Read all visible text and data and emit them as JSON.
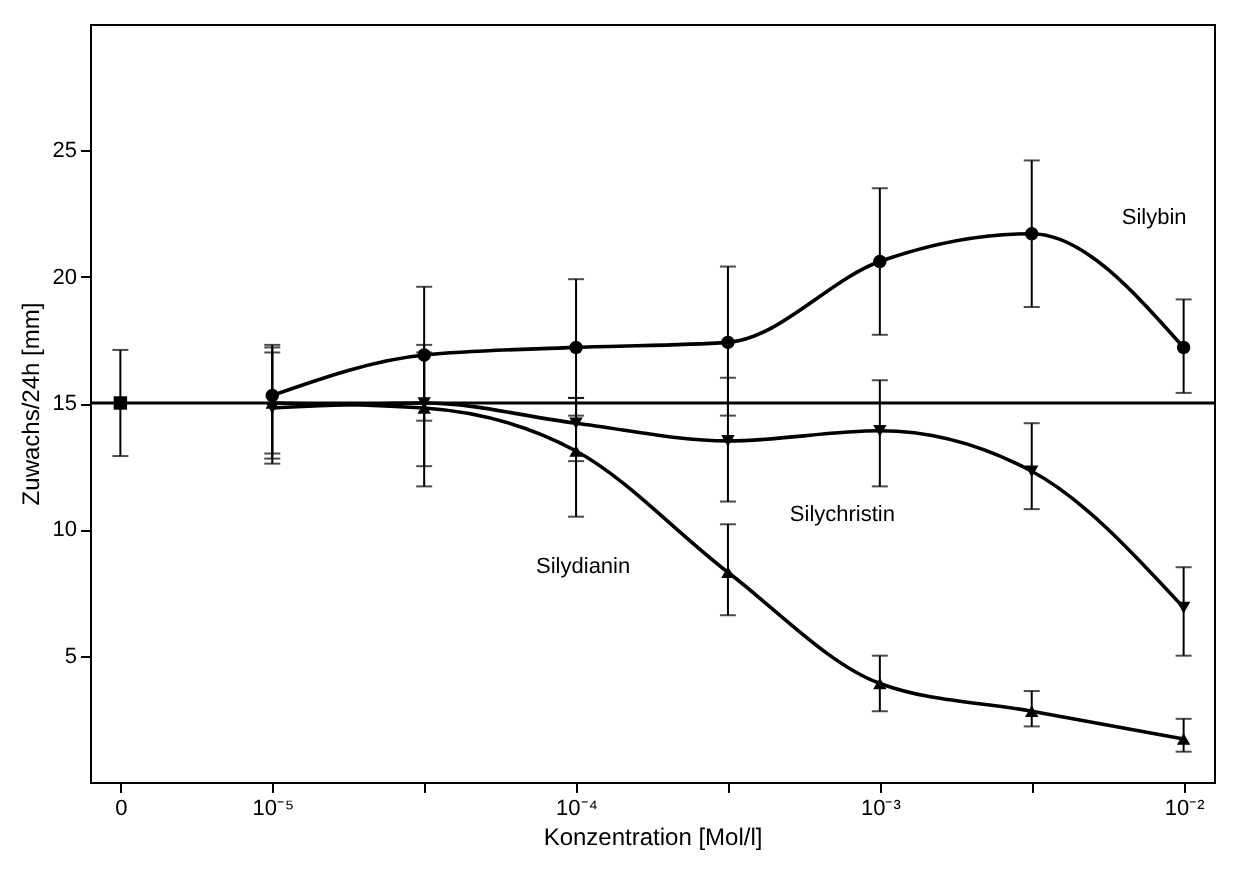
{
  "chart_data": {
    "type": "line",
    "xlabel": "Konzentration [Mol/l]",
    "ylabel": "Zuwachs/24h [mm]",
    "categories": [
      "0",
      "10⁻⁵",
      null,
      "10⁻⁴",
      null,
      "10⁻³",
      null,
      "10⁻²"
    ],
    "ylim": [
      0,
      30
    ],
    "yticks": [
      5,
      10,
      15,
      20,
      25
    ],
    "grid": false,
    "line_style": "solid",
    "ref_lines": [
      {
        "axis": "y",
        "value": 15
      }
    ],
    "series": [
      {
        "marker": "square",
        "color": "#000000",
        "values": [
          15,
          null,
          null,
          null,
          null,
          null,
          null,
          null
        ],
        "errors": [
          [
            12.9,
            17.1
          ],
          null,
          null,
          null,
          null,
          null,
          null,
          null
        ]
      },
      {
        "name": "Silybin",
        "marker": "circle",
        "color": "#000000",
        "values": [
          null,
          15.3,
          16.9,
          17.2,
          17.4,
          20.6,
          21.7,
          17.2
        ],
        "errors": [
          null,
          [
            13.0,
            17.3
          ],
          [
            14.3,
            19.6
          ],
          [
            14.5,
            19.9
          ],
          [
            14.5,
            20.4
          ],
          [
            17.7,
            23.5
          ],
          [
            18.8,
            24.6
          ],
          [
            15.4,
            19.1
          ]
        ]
      },
      {
        "name": "Silychristin",
        "marker": "triangle-down",
        "color": "#000000",
        "values": [
          null,
          14.8,
          15.0,
          14.2,
          13.5,
          13.9,
          12.3,
          6.9
        ],
        "errors": [
          null,
          [
            12.6,
            17.0
          ],
          [
            11.7,
            17.3
          ],
          [
            12.7,
            15.2
          ],
          [
            11.1,
            16.0
          ],
          [
            11.7,
            15.9
          ],
          [
            10.8,
            14.2
          ],
          [
            5.0,
            8.5
          ]
        ]
      },
      {
        "name": "Silydianin",
        "marker": "triangle-up",
        "color": "#000000",
        "values": [
          null,
          15.0,
          14.8,
          13.1,
          8.3,
          3.9,
          2.8,
          1.7
        ],
        "errors": [
          null,
          [
            12.8,
            17.2
          ],
          [
            12.5,
            17.0
          ],
          [
            10.5,
            15.2
          ],
          [
            6.6,
            10.2
          ],
          [
            2.8,
            5.0
          ],
          [
            2.2,
            3.6
          ],
          [
            1.2,
            2.5
          ]
        ]
      }
    ]
  }
}
